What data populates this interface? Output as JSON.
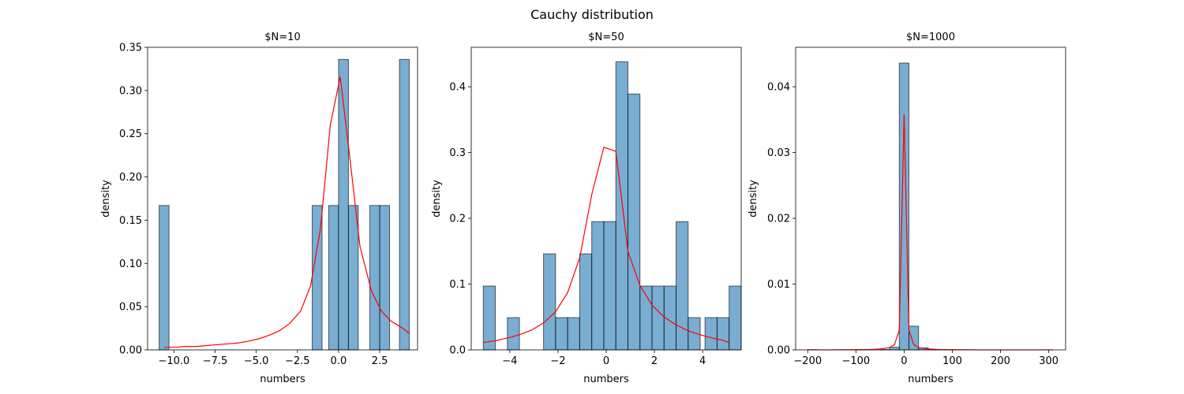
{
  "figure": {
    "title": "Cauchy distribution"
  },
  "chart_data": [
    {
      "type": "bar",
      "title": "$N=10",
      "xlabel": "numbers",
      "ylabel": "density",
      "xlim": [
        -11.6,
        4.8
      ],
      "ylim": [
        0,
        0.35
      ],
      "xticks": [
        -10.0,
        -7.5,
        -5.0,
        -2.5,
        0.0,
        2.5
      ],
      "xtick_labels": [
        "−10.0",
        "−7.5",
        "−5.0",
        "−2.5",
        "0.0",
        "2.5"
      ],
      "yticks": [
        0.0,
        0.05,
        0.1,
        0.15,
        0.2,
        0.25,
        0.3,
        0.35
      ],
      "ytick_labels": [
        "0.00",
        "0.05",
        "0.10",
        "0.15",
        "0.20",
        "0.25",
        "0.30",
        "0.35"
      ],
      "bins": [
        {
          "x0": -10.9,
          "x1": -10.3,
          "value": 0.167
        },
        {
          "x0": -1.6,
          "x1": -1.0,
          "value": 0.167
        },
        {
          "x0": -0.6,
          "x1": 0.0,
          "value": 0.167
        },
        {
          "x0": 0.0,
          "x1": 0.6,
          "value": 0.336
        },
        {
          "x0": 0.6,
          "x1": 1.2,
          "value": 0.167
        },
        {
          "x0": 1.9,
          "x1": 2.5,
          "value": 0.167
        },
        {
          "x0": 2.5,
          "x1": 3.1,
          "value": 0.167
        },
        {
          "x0": 3.7,
          "x1": 4.3,
          "value": 0.336
        }
      ],
      "pdf": {
        "x": [
          -10.6,
          -10.0,
          -9.3,
          -8.6,
          -8.0,
          -7.4,
          -6.7,
          -6.1,
          -5.5,
          -4.8,
          -4.2,
          -3.6,
          -3.0,
          -2.3,
          -1.7,
          -1.1,
          -0.5,
          0.1,
          0.7,
          1.3,
          2.0,
          2.6,
          3.2,
          3.9,
          4.3
        ],
        "y": [
          0.003,
          0.003,
          0.004,
          0.004,
          0.005,
          0.006,
          0.007,
          0.008,
          0.01,
          0.013,
          0.017,
          0.022,
          0.03,
          0.045,
          0.074,
          0.14,
          0.26,
          0.316,
          0.22,
          0.12,
          0.068,
          0.045,
          0.033,
          0.025,
          0.019
        ]
      }
    },
    {
      "type": "bar",
      "title": "$N=50",
      "xlabel": "numbers",
      "ylabel": "density",
      "xlim": [
        -5.6,
        5.6
      ],
      "ylim": [
        0,
        0.46
      ],
      "xticks": [
        -4,
        -2,
        0,
        2,
        4
      ],
      "xtick_labels": [
        "−4",
        "−2",
        "0",
        "2",
        "4"
      ],
      "yticks": [
        0.0,
        0.1,
        0.2,
        0.3,
        0.4
      ],
      "ytick_labels": [
        "0.0",
        "0.1",
        "0.2",
        "0.3",
        "0.4"
      ],
      "bins": [
        {
          "x0": -5.1,
          "x1": -4.6,
          "value": 0.097
        },
        {
          "x0": -4.1,
          "x1": -3.6,
          "value": 0.049
        },
        {
          "x0": -2.6,
          "x1": -2.1,
          "value": 0.146
        },
        {
          "x0": -2.1,
          "x1": -1.6,
          "value": 0.049
        },
        {
          "x0": -1.6,
          "x1": -1.1,
          "value": 0.049
        },
        {
          "x0": -1.1,
          "x1": -0.6,
          "value": 0.146
        },
        {
          "x0": -0.6,
          "x1": -0.1,
          "value": 0.195
        },
        {
          "x0": -0.1,
          "x1": 0.4,
          "value": 0.195
        },
        {
          "x0": 0.4,
          "x1": 0.9,
          "value": 0.438
        },
        {
          "x0": 0.9,
          "x1": 1.4,
          "value": 0.389
        },
        {
          "x0": 1.4,
          "x1": 1.9,
          "value": 0.097
        },
        {
          "x0": 1.9,
          "x1": 2.4,
          "value": 0.097
        },
        {
          "x0": 2.4,
          "x1": 2.9,
          "value": 0.097
        },
        {
          "x0": 2.9,
          "x1": 3.4,
          "value": 0.195
        },
        {
          "x0": 3.4,
          "x1": 3.9,
          "value": 0.049
        },
        {
          "x0": 4.1,
          "x1": 4.6,
          "value": 0.049
        },
        {
          "x0": 4.6,
          "x1": 5.1,
          "value": 0.049
        },
        {
          "x0": 5.1,
          "x1": 5.6,
          "value": 0.097
        }
      ],
      "pdf": {
        "x": [
          -5.1,
          -4.6,
          -4.1,
          -3.6,
          -3.1,
          -2.6,
          -2.1,
          -1.6,
          -1.1,
          -0.6,
          -0.1,
          0.4,
          0.9,
          1.4,
          1.9,
          2.4,
          2.9,
          3.4,
          3.9,
          4.4,
          4.9,
          5.1
        ],
        "y": [
          0.011,
          0.014,
          0.018,
          0.023,
          0.03,
          0.041,
          0.058,
          0.087,
          0.14,
          0.236,
          0.308,
          0.302,
          0.15,
          0.098,
          0.068,
          0.05,
          0.038,
          0.029,
          0.023,
          0.018,
          0.014,
          0.011
        ]
      }
    },
    {
      "type": "bar",
      "title": "$N=1000",
      "xlabel": "numbers",
      "ylabel": "density",
      "xlim": [
        -225,
        335
      ],
      "ylim": [
        0,
        0.046
      ],
      "xticks": [
        -200,
        -100,
        0,
        100,
        200,
        300
      ],
      "xtick_labels": [
        "−200",
        "−100",
        "0",
        "100",
        "200",
        "300"
      ],
      "yticks": [
        0.0,
        0.01,
        0.02,
        0.03,
        0.04
      ],
      "ytick_labels": [
        "0.00",
        "0.01",
        "0.02",
        "0.03",
        "0.04"
      ],
      "bins": [
        {
          "x0": -200,
          "x1": -180,
          "value": 3e-05
        },
        {
          "x0": -50,
          "x1": -30,
          "value": 6e-05
        },
        {
          "x0": -30,
          "x1": -10,
          "value": 0.0004
        },
        {
          "x0": -10,
          "x1": 10,
          "value": 0.0436
        },
        {
          "x0": 10,
          "x1": 30,
          "value": 0.0036
        },
        {
          "x0": 30,
          "x1": 50,
          "value": 0.0003
        },
        {
          "x0": 50,
          "x1": 70,
          "value": 6e-05
        }
      ],
      "pdf": {
        "x": [
          -200,
          -150,
          -100,
          -70,
          -50,
          -30,
          -20,
          -10,
          0,
          10,
          20,
          30,
          50,
          70,
          100,
          150,
          200,
          250,
          310
        ],
        "y": [
          1e-05,
          1e-05,
          3e-05,
          6e-05,
          0.00013,
          0.00035,
          0.0008,
          0.003,
          0.0358,
          0.003,
          0.0008,
          0.00035,
          0.00013,
          6e-05,
          3e-05,
          1e-05,
          1e-05,
          1e-05,
          1e-05
        ]
      }
    }
  ]
}
